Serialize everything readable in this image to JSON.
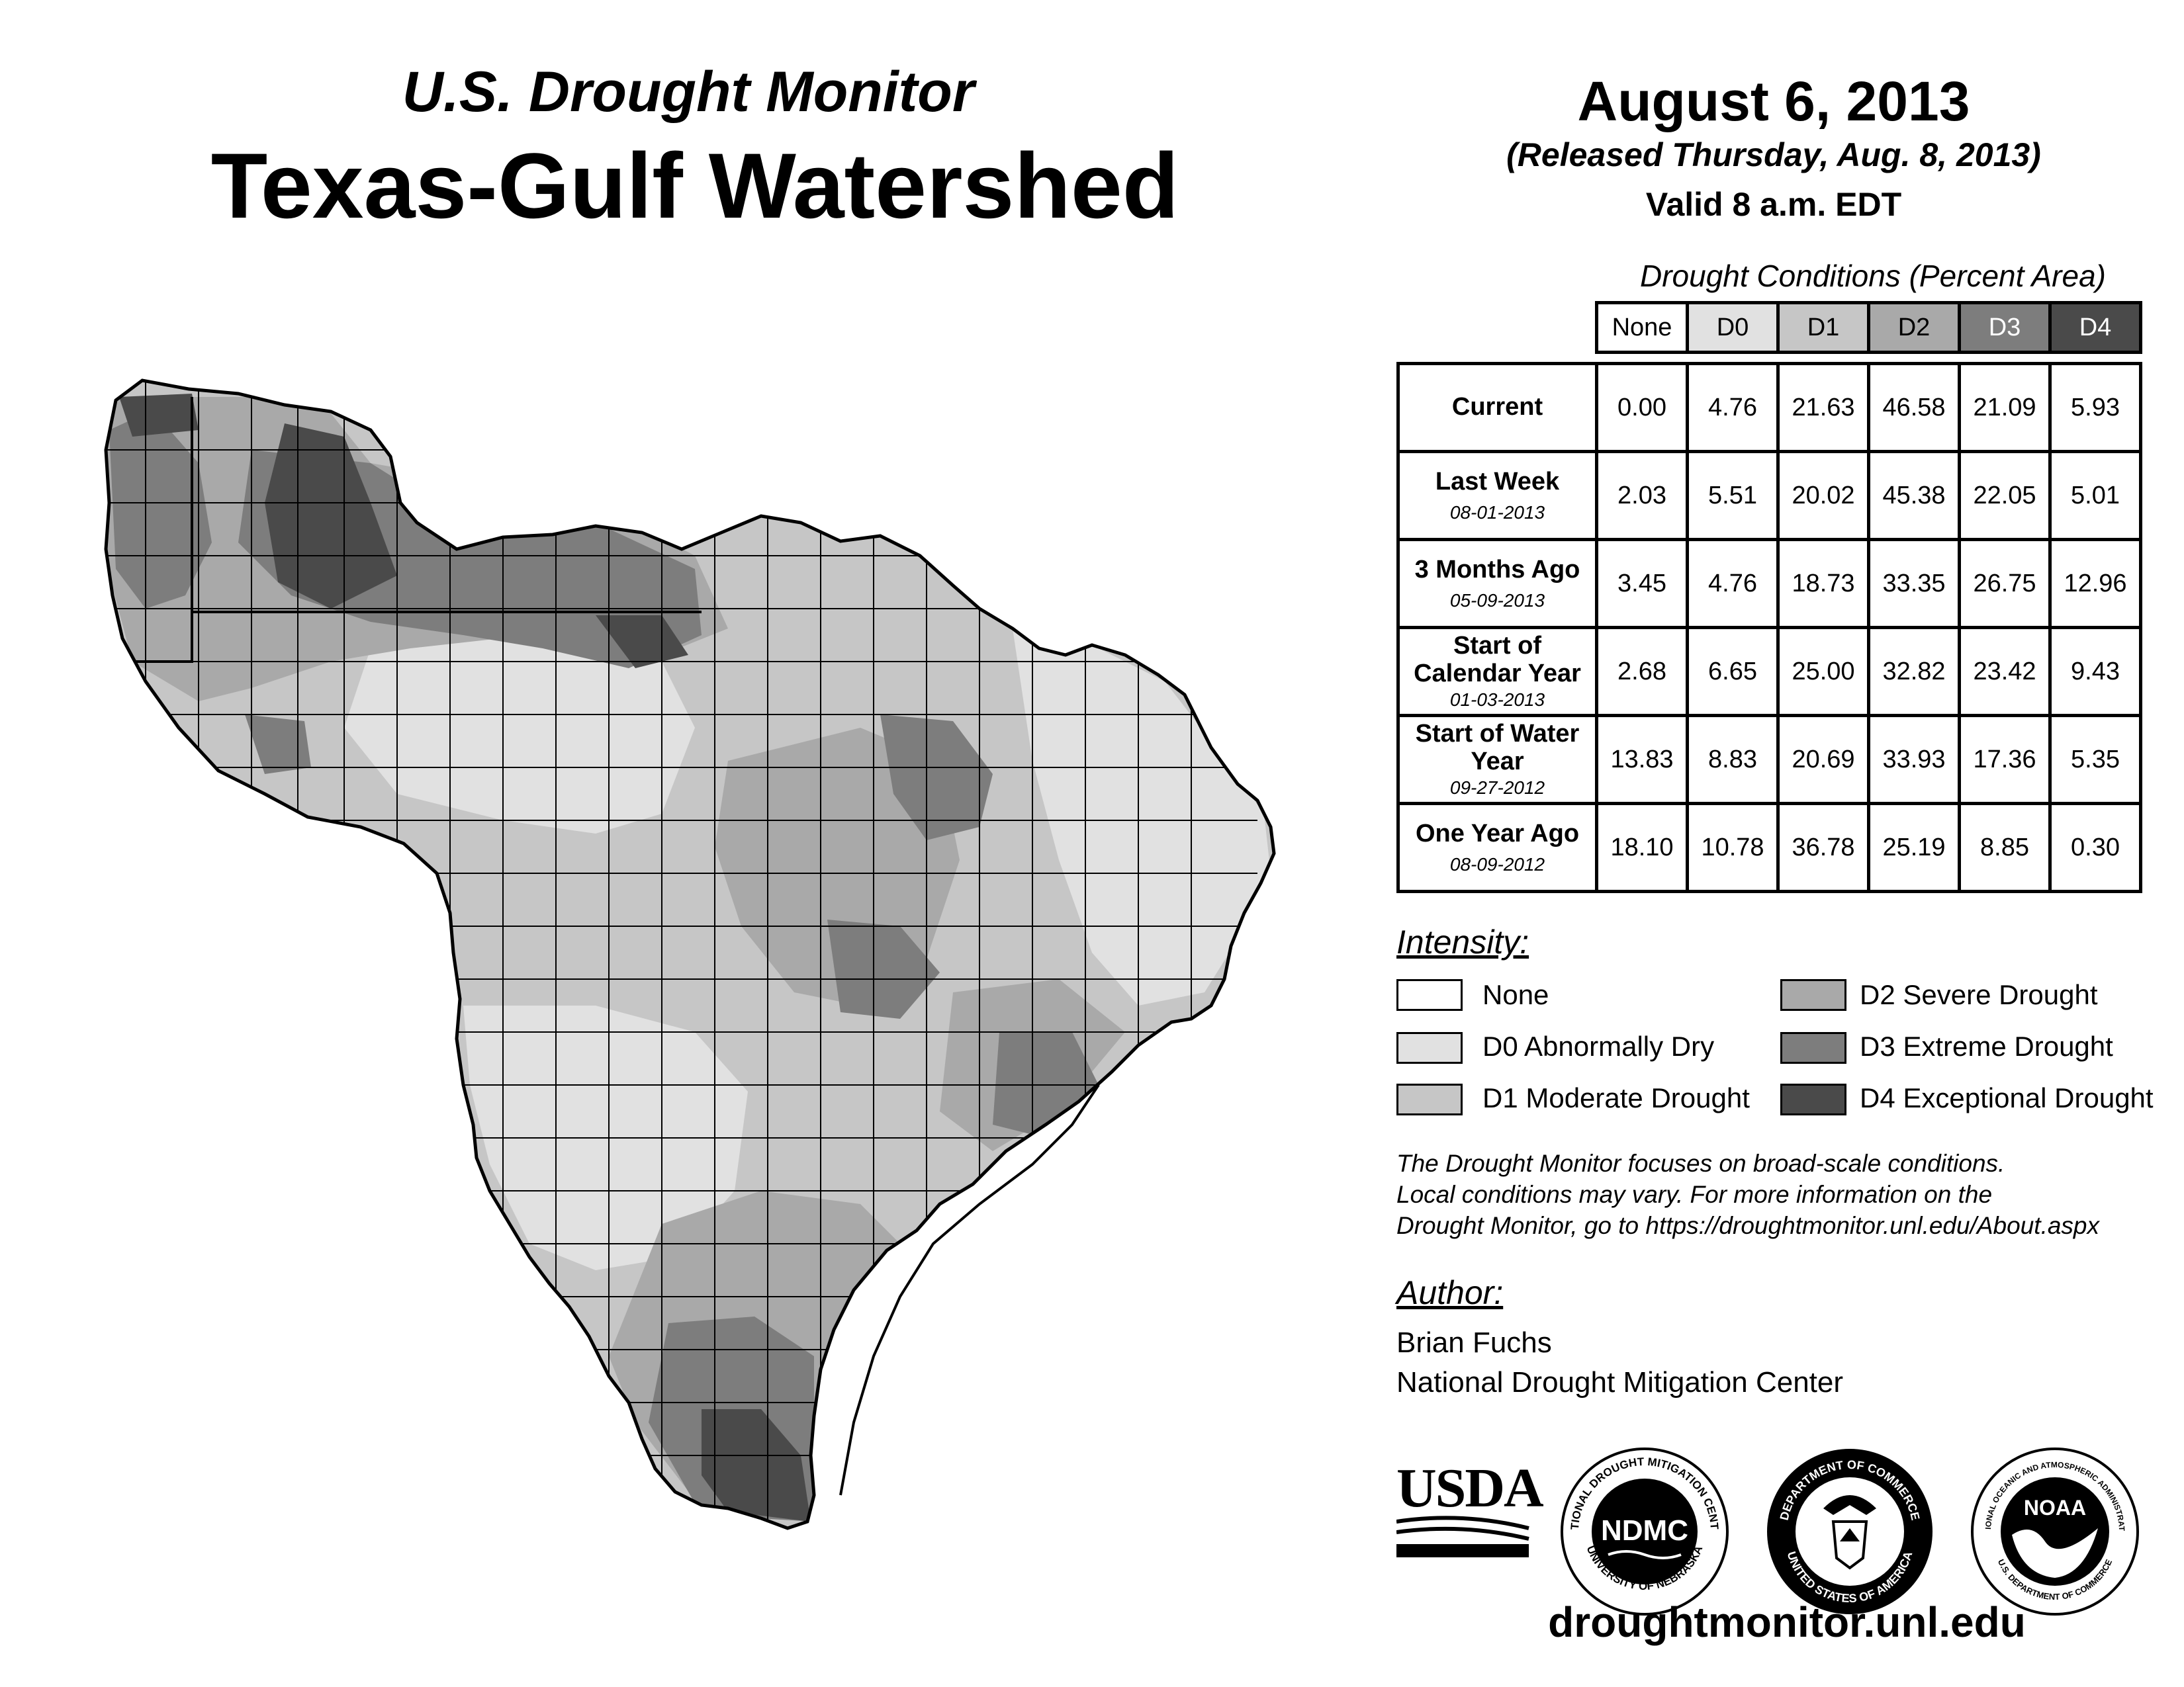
{
  "header": {
    "subtitle": "U.S. Drought Monitor",
    "title": "Texas-Gulf Watershed",
    "date": "August 6, 2013",
    "released": "(Released Thursday, Aug. 8, 2013)",
    "valid": "Valid 8 a.m. EDT"
  },
  "table": {
    "caption": "Drought Conditions (Percent Area)",
    "columns": [
      "None",
      "D0",
      "D1",
      "D2",
      "D3",
      "D4"
    ],
    "rows": [
      {
        "label": "Current",
        "date": "",
        "values": [
          "0.00",
          "4.76",
          "21.63",
          "46.58",
          "21.09",
          "5.93"
        ]
      },
      {
        "label": "Last Week",
        "date": "08-01-2013",
        "values": [
          "2.03",
          "5.51",
          "20.02",
          "45.38",
          "22.05",
          "5.01"
        ]
      },
      {
        "label": "3 Months Ago",
        "date": "05-09-2013",
        "values": [
          "3.45",
          "4.76",
          "18.73",
          "33.35",
          "26.75",
          "12.96"
        ]
      },
      {
        "label": "Start of Calendar Year",
        "date": "01-03-2013",
        "values": [
          "2.68",
          "6.65",
          "25.00",
          "32.82",
          "23.42",
          "9.43"
        ]
      },
      {
        "label": "Start of Water Year",
        "date": "09-27-2012",
        "values": [
          "13.83",
          "8.83",
          "20.69",
          "33.93",
          "17.36",
          "5.35"
        ]
      },
      {
        "label": "One Year Ago",
        "date": "08-09-2012",
        "values": [
          "18.10",
          "10.78",
          "36.78",
          "25.19",
          "8.85",
          "0.30"
        ]
      }
    ]
  },
  "legend": {
    "title": "Intensity:",
    "items": [
      {
        "label": "None",
        "color": "#ffffff"
      },
      {
        "label": "D0 Abnormally Dry",
        "color": "#e1e1e1"
      },
      {
        "label": "D1 Moderate Drought",
        "color": "#c6c6c6"
      },
      {
        "label": "D2 Severe Drought",
        "color": "#a9a9a9"
      },
      {
        "label": "D3 Extreme Drought",
        "color": "#7d7d7d"
      },
      {
        "label": "D4 Exceptional Drought",
        "color": "#4a4a4a"
      }
    ]
  },
  "note": {
    "line1": "The Drought Monitor focuses on broad-scale conditions.",
    "line2": "Local conditions may vary. For more information on the",
    "line3": "Drought Monitor, go to https://droughtmonitor.unl.edu/About.aspx"
  },
  "author": {
    "title": "Author:",
    "name": "Brian Fuchs",
    "org": "National Drought Mitigation Center"
  },
  "logos": {
    "usda": "USDA",
    "ndmc": "NDMC",
    "ndmc_ring_top": "NATIONAL DROUGHT MITIGATION CENTER",
    "ndmc_ring_bottom": "UNIVERSITY OF NEBRASKA",
    "doc_ring_top": "DEPARTMENT OF COMMERCE",
    "doc_ring_bottom": "UNITED STATES OF AMERICA",
    "noaa": "NOAA",
    "noaa_ring_top": "NATIONAL OCEANIC AND ATMOSPHERIC ADMINISTRATION",
    "noaa_ring_bottom": "U.S. DEPARTMENT OF COMMERCE"
  },
  "footer": {
    "site": "droughtmonitor.unl.edu"
  }
}
